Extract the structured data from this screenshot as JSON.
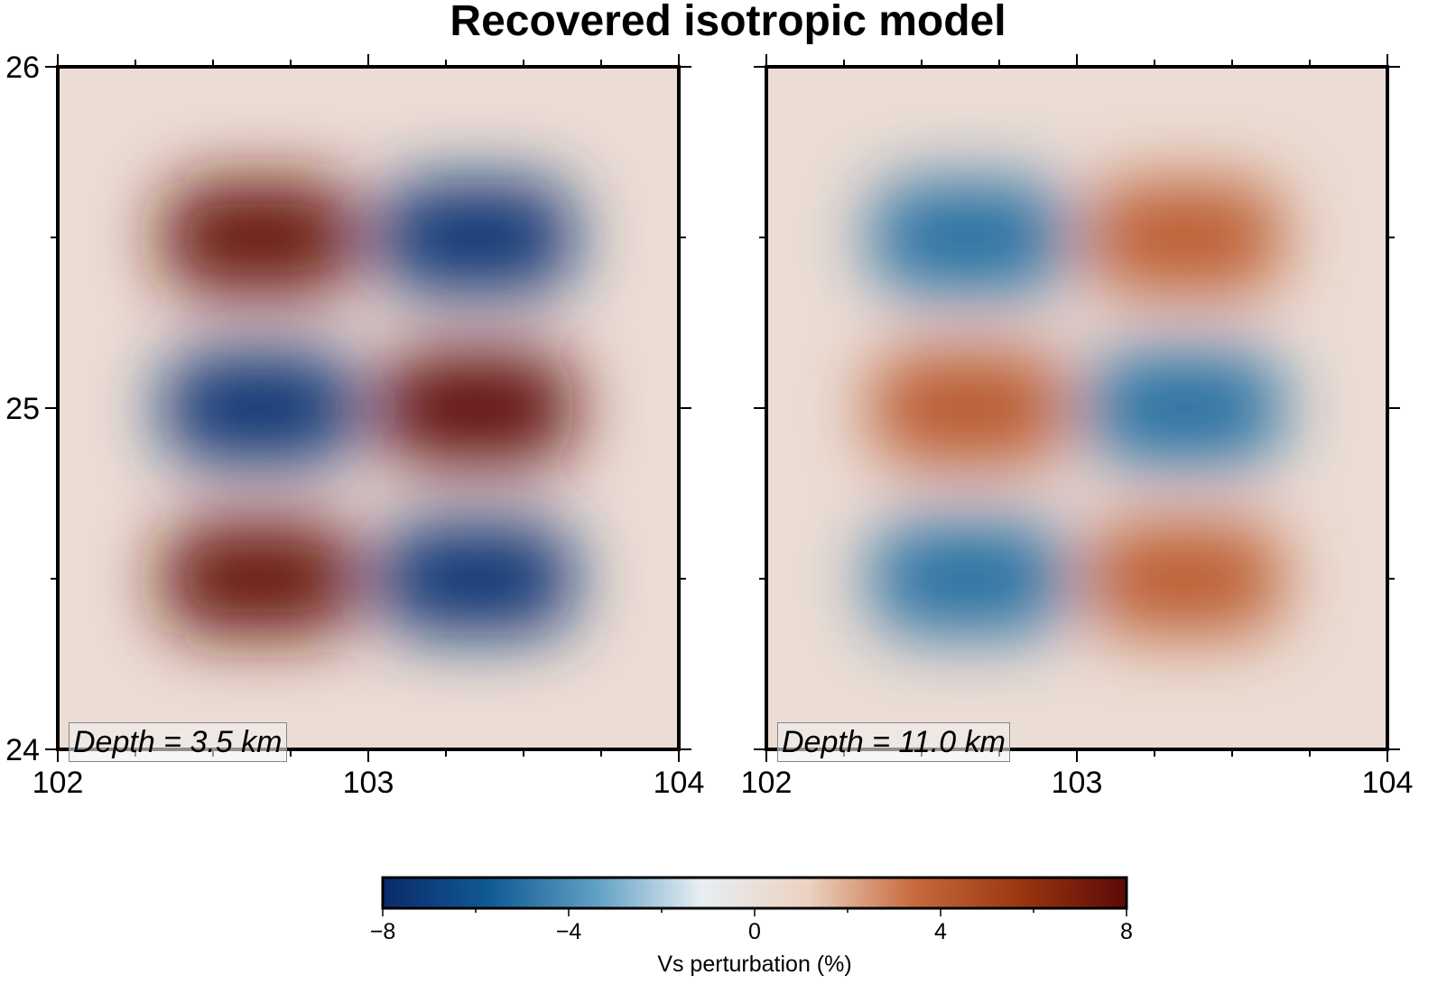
{
  "title": "Recovered isotropic model",
  "chart_data": [
    {
      "type": "heatmap",
      "panel_label": "Depth = 3.5 km",
      "xlim": [
        102,
        104
      ],
      "ylim": [
        24,
        26
      ],
      "x_ticks": [
        "102",
        "103",
        "104"
      ],
      "y_ticks": [
        "24",
        "25",
        "26"
      ],
      "anomalies": [
        {
          "x": 102.65,
          "y": 25.5,
          "value": 7.5
        },
        {
          "x": 103.35,
          "y": 25.5,
          "value": -7.5
        },
        {
          "x": 102.65,
          "y": 25.0,
          "value": -7.5
        },
        {
          "x": 103.35,
          "y": 25.0,
          "value": 7.8
        },
        {
          "x": 102.65,
          "y": 24.5,
          "value": 7.5
        },
        {
          "x": 103.35,
          "y": 24.5,
          "value": -7.5
        }
      ]
    },
    {
      "type": "heatmap",
      "panel_label": "Depth = 11.0 km",
      "xlim": [
        102,
        104
      ],
      "ylim": [
        24,
        26
      ],
      "x_ticks": [
        "102",
        "103",
        "104"
      ],
      "y_ticks": [],
      "anomalies": [
        {
          "x": 102.65,
          "y": 25.5,
          "value": -5.0
        },
        {
          "x": 103.35,
          "y": 25.5,
          "value": 4.0
        },
        {
          "x": 102.65,
          "y": 25.0,
          "value": 4.2
        },
        {
          "x": 103.35,
          "y": 25.0,
          "value": -5.0
        },
        {
          "x": 102.65,
          "y": 24.5,
          "value": -5.0
        },
        {
          "x": 103.35,
          "y": 24.5,
          "value": 4.0
        }
      ]
    }
  ],
  "colorbar": {
    "label": "Vs perturbation (%)",
    "range": [
      -8,
      8
    ],
    "ticks": [
      "−8",
      "−4",
      "0",
      "4",
      "8"
    ],
    "colors": [
      "#0a2a6b",
      "#0f5a93",
      "#5f9fc4",
      "#e8eef2",
      "#ecd2c2",
      "#c76a3c",
      "#9a3610",
      "#5a0a08"
    ]
  }
}
